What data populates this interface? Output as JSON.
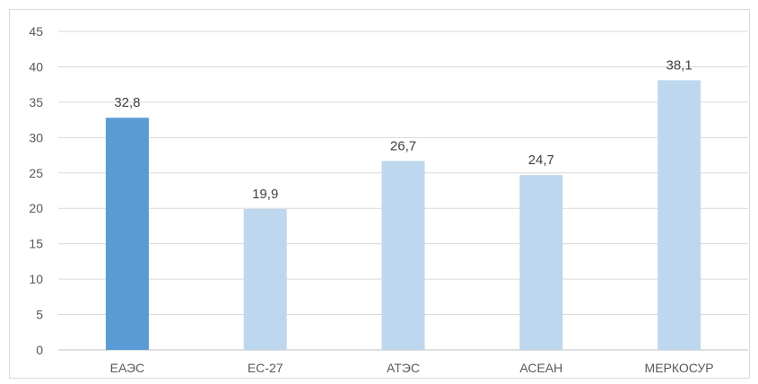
{
  "chart_data": {
    "type": "bar",
    "categories": [
      "ЕАЭС",
      "ЕС-27",
      "АТЭС",
      "АСЕАН",
      "МЕРКОСУР"
    ],
    "values": [
      32.8,
      19.9,
      26.7,
      24.7,
      38.1
    ],
    "value_labels": [
      "32,8",
      "19,9",
      "26,7",
      "24,7",
      "38,1"
    ],
    "highlight_index": 0,
    "ylim": [
      0,
      45
    ],
    "yticks": [
      0,
      5,
      10,
      15,
      20,
      25,
      30,
      35,
      40,
      45
    ],
    "grid": true,
    "title": "",
    "xlabel": "",
    "ylabel": "",
    "colors": {
      "highlight": "#5b9bd5",
      "bar": "#bdd7ee",
      "grid": "#d9d9d9",
      "axis": "#bfbfbf"
    }
  }
}
